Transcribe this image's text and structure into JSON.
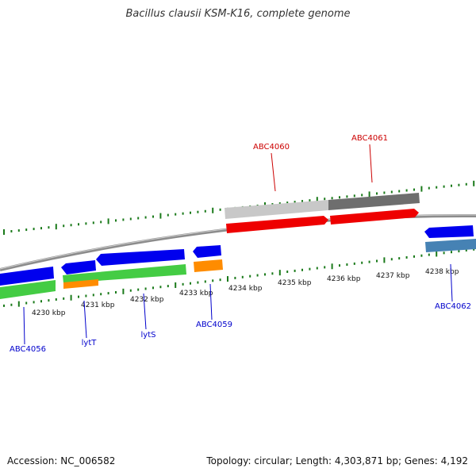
{
  "title": "Bacillus clausii KSM-K16, complete genome",
  "footer": {
    "accession": "Accession: NC_006582",
    "topology": "Topology: circular; Length: 4,303,871 bp; Genes: 4,192"
  },
  "colors": {
    "tick": "#1a7a1a",
    "backbone": "#8c8c8c",
    "label_red": "#cc0000",
    "label_blue": "#0000cc",
    "gene_blue": "#0000ee",
    "gene_green": "#44cc44",
    "gene_red": "#ee0000",
    "gene_orange": "#ff8c00",
    "gene_lightgray": "#c8c8c8",
    "gene_darkgray": "#6e6e6e",
    "gene_steelblue": "#4682b4"
  },
  "scale": {
    "tick_labels": [
      "4230 kbp",
      "4231 kbp",
      "4232 kbp",
      "4233 kbp",
      "4234 kbp",
      "4235 kbp",
      "4236 kbp",
      "4237 kbp",
      "4238 kbp"
    ]
  },
  "gene_labels": [
    {
      "name": "ABC4060",
      "color": "red"
    },
    {
      "name": "ABC4061",
      "color": "red"
    },
    {
      "name": "ABC4056",
      "color": "blue"
    },
    {
      "name": "lytT",
      "color": "blue"
    },
    {
      "name": "lytS",
      "color": "blue"
    },
    {
      "name": "ABC4059",
      "color": "blue"
    },
    {
      "name": "ABC4062",
      "color": "blue"
    }
  ]
}
